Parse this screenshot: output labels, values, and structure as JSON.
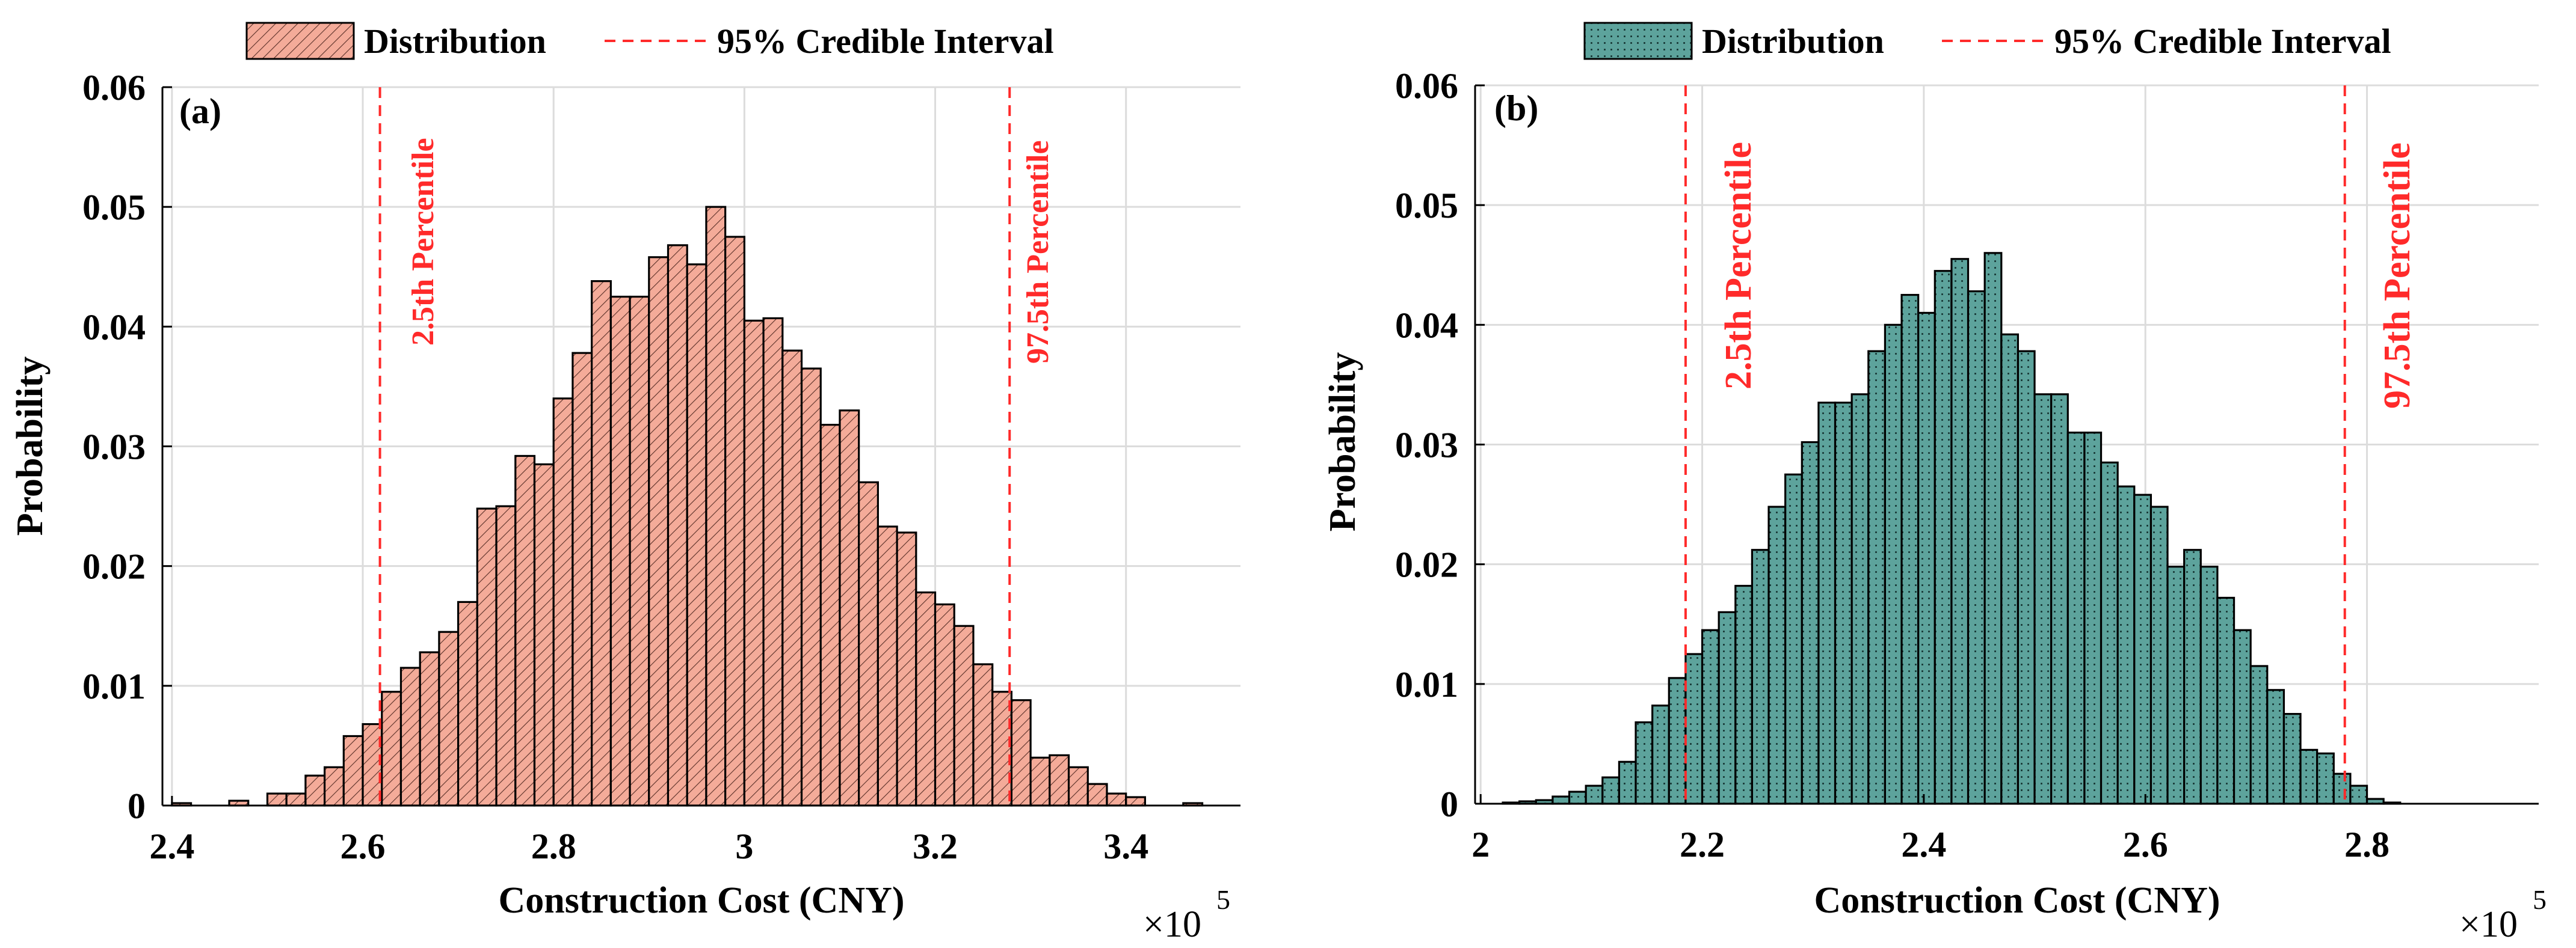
{
  "colors": {
    "bar_a": "#f4ab99",
    "bar_b": "#5da39c",
    "hatch_a": "#5a3028",
    "dots_b": "#0d2826",
    "interval": "#ff2a2a",
    "grid": "#dcdcdc",
    "edge": "#000000"
  },
  "chart_data": [
    {
      "type": "bar",
      "panel": "(a)",
      "title": "",
      "xlabel": "Construction Cost (CNY)",
      "ylabel": "Probability",
      "x_multiplier": "×10",
      "x_multiplier_exp": "5",
      "x_scale": 100000,
      "xlim": [
        2.39,
        3.52
      ],
      "ylim": [
        0,
        0.06
      ],
      "xticks": [
        2.4,
        2.6,
        2.8,
        3.0,
        3.2,
        3.4
      ],
      "xtick_labels": [
        "2.4",
        "2.6",
        "2.8",
        "3",
        "3.2",
        "3.4"
      ],
      "yticks": [
        0,
        0.01,
        0.02,
        0.03,
        0.04,
        0.05,
        0.06
      ],
      "ytick_labels": [
        "0",
        "0.01",
        "0.02",
        "0.03",
        "0.04",
        "0.05",
        "0.06"
      ],
      "grid": true,
      "legend": {
        "position": "top",
        "distribution_label": "Distribution",
        "interval_label": "95% Credible Interval"
      },
      "bin_start": 2.4,
      "bin_width": 0.02,
      "values": [
        0.0002,
        0,
        0,
        0.0004,
        0,
        0.001,
        0.001,
        0.0025,
        0.0032,
        0.0058,
        0.0068,
        0.0095,
        0.0115,
        0.0128,
        0.0145,
        0.017,
        0.0248,
        0.025,
        0.0292,
        0.0285,
        0.034,
        0.0378,
        0.0438,
        0.0425,
        0.0425,
        0.0458,
        0.0468,
        0.0452,
        0.05,
        0.0475,
        0.0405,
        0.0407,
        0.038,
        0.0365,
        0.0318,
        0.033,
        0.027,
        0.0233,
        0.0228,
        0.0178,
        0.0168,
        0.015,
        0.0118,
        0.0095,
        0.0088,
        0.004,
        0.0042,
        0.0032,
        0.0018,
        0.001,
        0.0007,
        0,
        0,
        0.0002
      ],
      "interval": {
        "lower": 2.618,
        "upper": 3.278,
        "lower_label": "2.5th Percentile",
        "upper_label": "97.5th Percentile"
      }
    },
    {
      "type": "bar",
      "panel": "(b)",
      "title": "",
      "xlabel": "Construction Cost (CNY)",
      "ylabel": "Probability",
      "x_multiplier": "×10",
      "x_multiplier_exp": "5",
      "x_scale": 100000,
      "xlim": [
        1.995,
        2.955
      ],
      "ylim": [
        0,
        0.06
      ],
      "xticks": [
        2.0,
        2.2,
        2.4,
        2.6,
        2.8
      ],
      "xtick_labels": [
        "2",
        "2.2",
        "2.4",
        "2.6",
        "2.8"
      ],
      "yticks": [
        0,
        0.01,
        0.02,
        0.03,
        0.04,
        0.05,
        0.06
      ],
      "ytick_labels": [
        "0",
        "0.01",
        "0.02",
        "0.03",
        "0.04",
        "0.05",
        "0.06"
      ],
      "grid": true,
      "legend": {
        "position": "top",
        "distribution_label": "Distribution",
        "interval_label": "95% Credible Interval"
      },
      "bin_start": 2.02,
      "bin_width": 0.015,
      "values": [
        0.0001,
        0.0002,
        0.0003,
        0.0006,
        0.001,
        0.0015,
        0.0022,
        0.0035,
        0.0068,
        0.0082,
        0.0105,
        0.0125,
        0.0145,
        0.016,
        0.0182,
        0.0212,
        0.0248,
        0.0275,
        0.0302,
        0.0335,
        0.0335,
        0.0342,
        0.0378,
        0.04,
        0.0425,
        0.041,
        0.0445,
        0.0455,
        0.0428,
        0.046,
        0.0392,
        0.0378,
        0.0342,
        0.0342,
        0.031,
        0.031,
        0.0285,
        0.0265,
        0.0258,
        0.0248,
        0.0198,
        0.0212,
        0.0198,
        0.0172,
        0.0145,
        0.0115,
        0.0095,
        0.0075,
        0.0045,
        0.0042,
        0.0025,
        0.0015,
        0.0004,
        0.0001
      ],
      "interval": {
        "lower": 2.185,
        "upper": 2.78,
        "lower_label": "2.5th Percentile",
        "upper_label": "97.5th Percentile"
      }
    }
  ]
}
